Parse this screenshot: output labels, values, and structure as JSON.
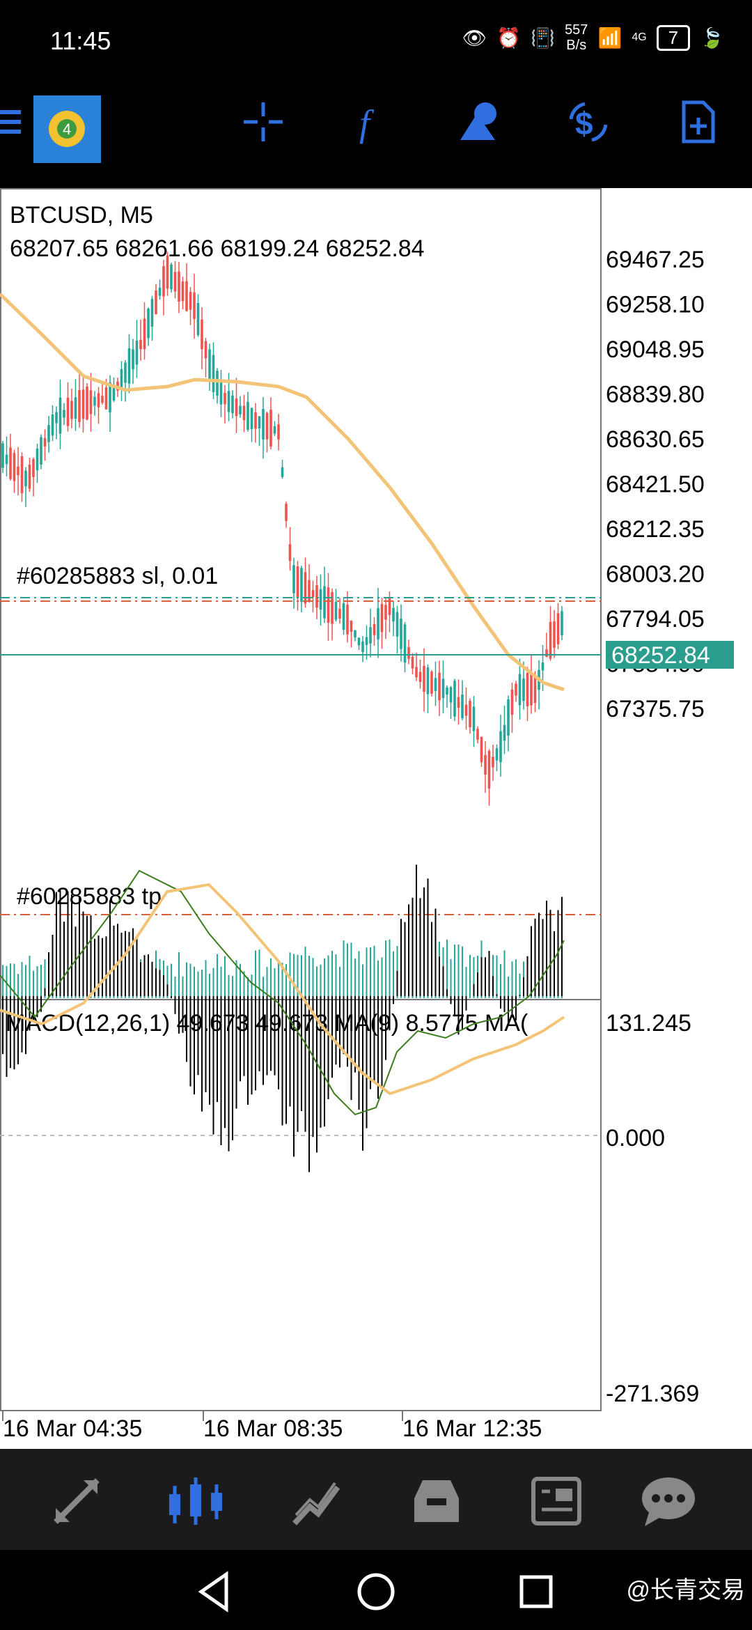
{
  "status": {
    "time": "11:45",
    "net_speed_top": "557",
    "net_speed_bottom": "B/s",
    "net_type": "4G",
    "battery": "7"
  },
  "chart": {
    "symbol": "BTCUSD, M5",
    "ohlc": "68207.65 68261.66 68199.24 68252.84",
    "price_levels": [
      "69467.25",
      "69258.10",
      "69048.95",
      "68839.80",
      "68630.65",
      "68421.50",
      "68212.35",
      "68003.20",
      "67794.05",
      "67584.90",
      "67375.75"
    ],
    "current_price": "68252.84",
    "sl_label": "#60285883 sl, 0.01",
    "tp_label": "#60285883 tp",
    "macd_label": "MACD(12,26,1) 49.673 49.673 MA(9) 8.5775 MA(",
    "macd_levels": [
      "131.245",
      "0.000",
      "-271.369"
    ],
    "time_labels": [
      "16 Mar 04:35",
      "16 Mar 08:35",
      "16 Mar 12:35"
    ],
    "colors": {
      "bull": "#26a69a",
      "bear": "#ef5350",
      "ma": "#f3c477",
      "current": "#2a9d8f",
      "sl_tp": "#d9603b"
    }
  },
  "nav": [
    "quotes-icon",
    "chart-icon",
    "trade-icon",
    "history-icon",
    "news-icon",
    "chat-icon"
  ],
  "watermark": "@长青交易"
}
